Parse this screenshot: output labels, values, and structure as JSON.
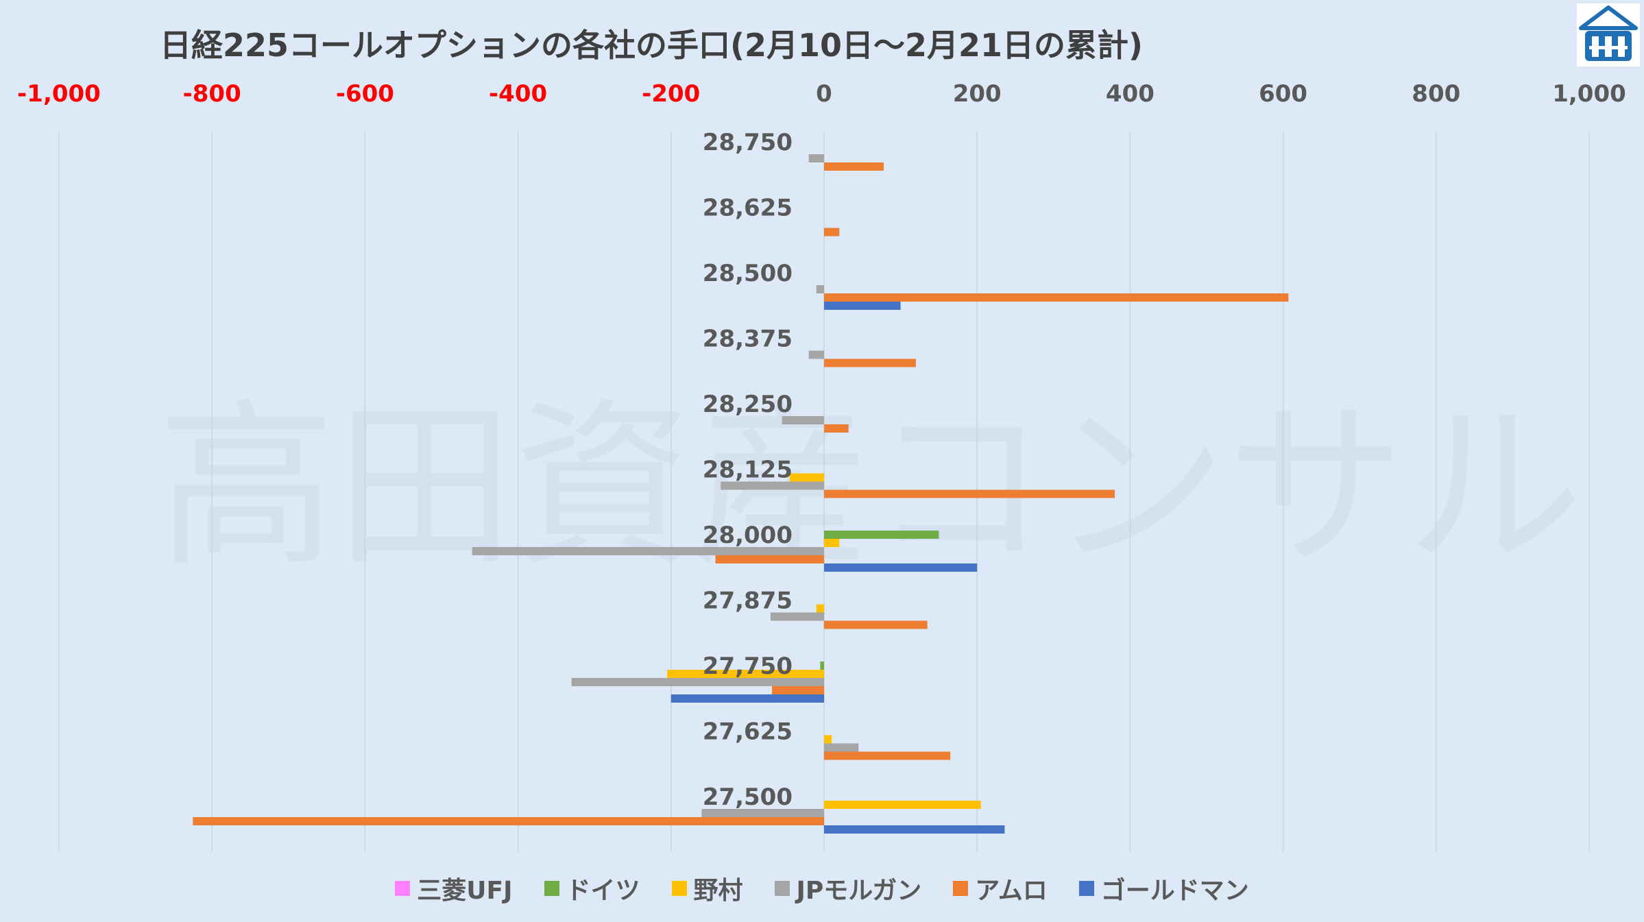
{
  "title": "日経225コールオプションの各社の手口(2月10日～2月21日の累計)",
  "colors": {
    "negative_tick": "#ff0000",
    "positive_tick": "#595959",
    "grid": "#c8d3df",
    "background": "#dde9f6"
  },
  "watermark": "高田資産コンサル",
  "logo_icon": "building-logo-icon",
  "chart_data": {
    "type": "bar",
    "orientation": "horizontal",
    "title": "日経225コールオプションの各社の手口(2月10日～2月21日の累計)",
    "xlim": [
      -1000,
      1000
    ],
    "xticks": [
      -1000,
      -800,
      -600,
      -400,
      -200,
      0,
      200,
      400,
      600,
      800,
      1000
    ],
    "xtick_labels": [
      "-1,000",
      "-800",
      "-600",
      "-400",
      "-200",
      "0",
      "200",
      "400",
      "600",
      "800",
      "1,000"
    ],
    "axis_position": "top",
    "grid": true,
    "legend_position": "bottom",
    "categories": [
      "28,750",
      "28,625",
      "28,500",
      "28,375",
      "28,250",
      "28,125",
      "28,000",
      "27,875",
      "27,750",
      "27,625",
      "27,500"
    ],
    "series": [
      {
        "name": "三菱UFJ",
        "color": "#ff80ff",
        "values": [
          0,
          0,
          0,
          0,
          0,
          0,
          0,
          0,
          0,
          0,
          0
        ]
      },
      {
        "name": "ドイツ",
        "color": "#70ad47",
        "values": [
          0,
          0,
          0,
          0,
          0,
          0,
          150,
          0,
          -5,
          0,
          0
        ]
      },
      {
        "name": "野村",
        "color": "#ffc000",
        "values": [
          0,
          0,
          0,
          0,
          0,
          -45,
          20,
          -10,
          -205,
          10,
          205
        ]
      },
      {
        "name": "JPモルガン",
        "color": "#a5a5a5",
        "values": [
          -20,
          0,
          -10,
          -20,
          -55,
          -135,
          -460,
          -70,
          -330,
          45,
          -160
        ]
      },
      {
        "name": "アムロ",
        "color": "#ed7d31",
        "values": [
          78,
          20,
          607,
          120,
          32,
          380,
          -142,
          135,
          -68,
          165,
          -825
        ]
      },
      {
        "name": "ゴールドマン",
        "color": "#4472c4",
        "values": [
          0,
          0,
          100,
          0,
          0,
          0,
          200,
          0,
          -200,
          0,
          236
        ]
      }
    ]
  }
}
